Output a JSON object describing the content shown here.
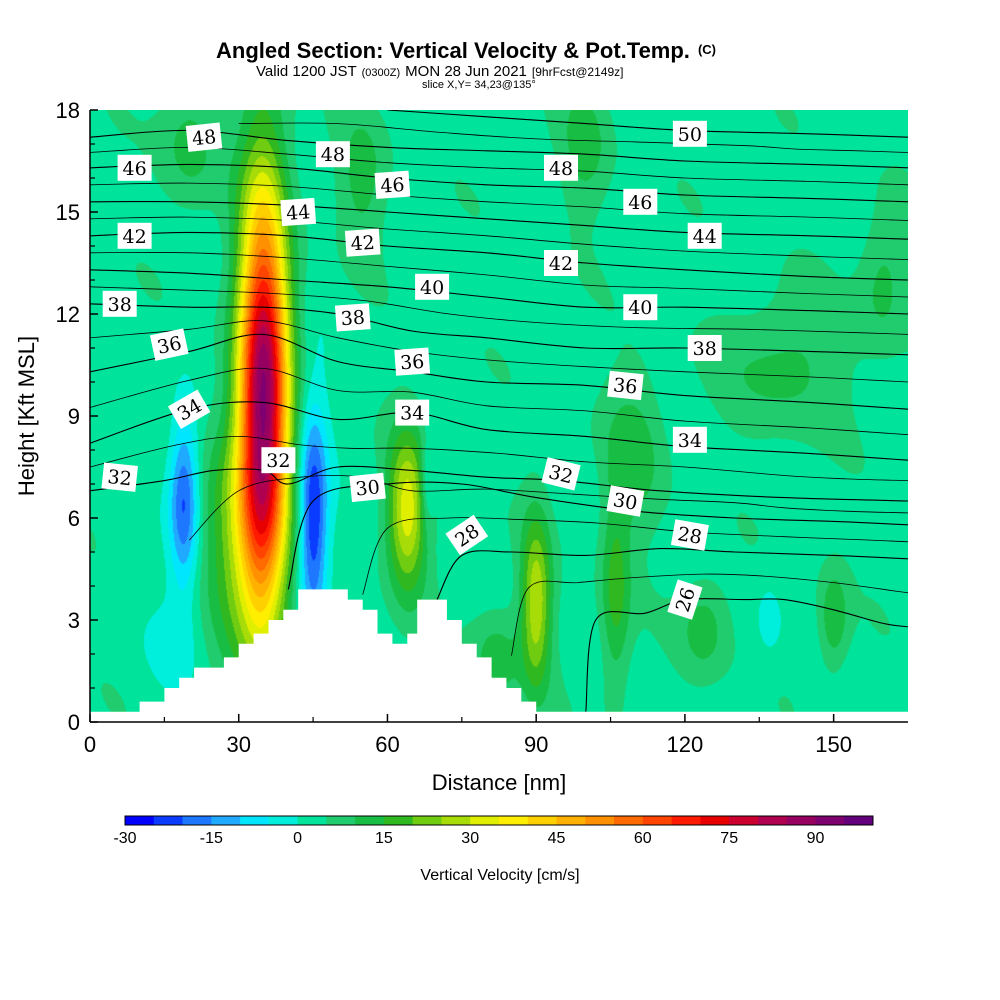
{
  "chart_data": {
    "type": "heatmap",
    "title": "Angled Section: Vertical Velocity & Pot.Temp.",
    "title_tag": "(C)",
    "subtitle_parts": [
      "Valid 1200 JST",
      "(0300Z)",
      "MON 28 Jun 2021",
      "[9hrFcst@2149z]"
    ],
    "slice_label": "slice X,Y= 34,23@135°",
    "xlabel": "Distance [nm]",
    "ylabel": "Height [Kft MSL]",
    "xlim": [
      0,
      165
    ],
    "ylim": [
      0,
      18
    ],
    "xticks": [
      "0",
      "30",
      "60",
      "90",
      "120",
      "150"
    ],
    "yticks": [
      "0",
      "3",
      "6",
      "9",
      "12",
      "15",
      "18"
    ],
    "colorbar": {
      "title": "Vertical Velocity [cm/s]",
      "tick_labels": [
        "-30",
        "-15",
        "0",
        "15",
        "30",
        "45",
        "60",
        "75",
        "90"
      ],
      "tick_values": [
        -30,
        -15,
        0,
        15,
        30,
        45,
        60,
        75,
        90
      ],
      "min": -30,
      "max": 100,
      "step": 5,
      "colors": [
        "#0000ff",
        "#0a3cff",
        "#1e78ff",
        "#20aaff",
        "#00e6ff",
        "#00eedc",
        "#00e39a",
        "#20cc6e",
        "#18be44",
        "#30b820",
        "#70cc10",
        "#a8dc08",
        "#e0ee00",
        "#ffee00",
        "#ffd000",
        "#ffb000",
        "#ff9000",
        "#ff6a00",
        "#ff4400",
        "#ff1a00",
        "#e80000",
        "#cc0030",
        "#b00050",
        "#960060",
        "#7e0070",
        "#64007c"
      ]
    },
    "background_value": 3,
    "velocity_features": [
      {
        "x": 35,
        "y": 9.5,
        "rx": 5,
        "ry": 6.2,
        "peak": 85
      },
      {
        "x": 30,
        "y": 5.5,
        "rx": 7,
        "ry": 3.5,
        "peak": 18
      },
      {
        "x": 19,
        "y": 6.5,
        "rx": 3,
        "ry": 2.5,
        "peak": -25
      },
      {
        "x": 45,
        "y": 6,
        "rx": 3,
        "ry": 3.2,
        "peak": -30
      },
      {
        "x": 64,
        "y": 6.2,
        "rx": 4,
        "ry": 2.3,
        "peak": 30
      },
      {
        "x": 68,
        "y": 7,
        "rx": 1.5,
        "ry": 1.3,
        "peak": -12
      },
      {
        "x": 82,
        "y": 1.8,
        "rx": 5,
        "ry": 1.5,
        "peak": 10
      },
      {
        "x": 90,
        "y": 3.5,
        "rx": 3,
        "ry": 2.5,
        "peak": 26
      },
      {
        "x": 106,
        "y": 3.8,
        "rx": 3,
        "ry": 3,
        "peak": 14
      },
      {
        "x": 124,
        "y": 2.8,
        "rx": 5,
        "ry": 1.5,
        "peak": 10
      },
      {
        "x": 150,
        "y": 3,
        "rx": 3,
        "ry": 1.5,
        "peak": 12
      },
      {
        "x": 137,
        "y": 3,
        "rx": 3,
        "ry": 1.4,
        "peak": -5
      },
      {
        "x": 18,
        "y": 2.5,
        "rx": 6,
        "ry": 1.5,
        "peak": -5
      },
      {
        "x": 20,
        "y": 17,
        "rx": 6,
        "ry": 2,
        "peak": 9
      },
      {
        "x": 55,
        "y": 16,
        "rx": 5,
        "ry": 2,
        "peak": 9
      },
      {
        "x": 100,
        "y": 17,
        "rx": 5,
        "ry": 2,
        "peak": 9
      },
      {
        "x": 140,
        "y": 10.5,
        "rx": 12,
        "ry": 2,
        "peak": 9
      },
      {
        "x": 160,
        "y": 13,
        "rx": 5,
        "ry": 2,
        "peak": 9
      },
      {
        "x": 110,
        "y": 8,
        "rx": 6,
        "ry": 2.5,
        "peak": 9
      }
    ],
    "terrain": [
      [
        0,
        0.3
      ],
      [
        10,
        0.3
      ],
      [
        10,
        0.6
      ],
      [
        15,
        0.6
      ],
      [
        15,
        1.0
      ],
      [
        18,
        1.0
      ],
      [
        18,
        1.3
      ],
      [
        21,
        1.3
      ],
      [
        21,
        1.6
      ],
      [
        27,
        1.6
      ],
      [
        27,
        1.9
      ],
      [
        30,
        1.9
      ],
      [
        30,
        2.3
      ],
      [
        33,
        2.3
      ],
      [
        33,
        2.6
      ],
      [
        36,
        2.6
      ],
      [
        36,
        3.0
      ],
      [
        39,
        3.0
      ],
      [
        39,
        3.3
      ],
      [
        42,
        3.3
      ],
      [
        42,
        3.9
      ],
      [
        52,
        3.9
      ],
      [
        52,
        3.6
      ],
      [
        55,
        3.6
      ],
      [
        55,
        3.3
      ],
      [
        58,
        3.3
      ],
      [
        58,
        2.6
      ],
      [
        61,
        2.6
      ],
      [
        61,
        2.3
      ],
      [
        64,
        2.3
      ],
      [
        64,
        2.6
      ],
      [
        66,
        2.6
      ],
      [
        66,
        3.6
      ],
      [
        72,
        3.6
      ],
      [
        72,
        3.0
      ],
      [
        75,
        3.0
      ],
      [
        75,
        2.3
      ],
      [
        78,
        2.3
      ],
      [
        78,
        1.9
      ],
      [
        81,
        1.9
      ],
      [
        81,
        1.3
      ],
      [
        84,
        1.3
      ],
      [
        84,
        1.0
      ],
      [
        87,
        1.0
      ],
      [
        87,
        0.6
      ],
      [
        90,
        0.6
      ],
      [
        90,
        0.3
      ],
      [
        165,
        0.3
      ]
    ],
    "isentropes": [
      {
        "value": 26,
        "points": [
          [
            100,
            0.3
          ],
          [
            102,
            3.0
          ],
          [
            112,
            3.2
          ],
          [
            120,
            3.6
          ],
          [
            132,
            3.6
          ],
          [
            140,
            3.6
          ],
          [
            150,
            3.3
          ],
          [
            160,
            2.9
          ],
          [
            165,
            2.8
          ]
        ]
      },
      {
        "value": 28,
        "points": [
          [
            70,
            3.6
          ],
          [
            75,
            4.9
          ],
          [
            85,
            5.0
          ],
          [
            100,
            4.9
          ],
          [
            115,
            5.1
          ],
          [
            130,
            5.0
          ],
          [
            150,
            4.9
          ],
          [
            165,
            4.8
          ]
        ]
      },
      {
        "value": 30,
        "points": [
          [
            40,
            3.9
          ],
          [
            45,
            6.5
          ],
          [
            60,
            7.0
          ],
          [
            75,
            7.0
          ],
          [
            90,
            6.6
          ],
          [
            110,
            6.2
          ],
          [
            130,
            6.0
          ],
          [
            150,
            5.9
          ],
          [
            165,
            5.8
          ]
        ]
      },
      {
        "value": 32,
        "points": [
          [
            0,
            6.8
          ],
          [
            15,
            7.1
          ],
          [
            25,
            7.4
          ],
          [
            35,
            7.4
          ],
          [
            40,
            7.0
          ],
          [
            50,
            7.5
          ],
          [
            65,
            7.4
          ],
          [
            80,
            7.2
          ],
          [
            95,
            7.1
          ],
          [
            115,
            6.8
          ],
          [
            140,
            6.6
          ],
          [
            165,
            6.5
          ]
        ]
      },
      {
        "value": 34,
        "points": [
          [
            0,
            8.2
          ],
          [
            20,
            9.2
          ],
          [
            35,
            9.4
          ],
          [
            50,
            8.9
          ],
          [
            65,
            9.1
          ],
          [
            80,
            8.6
          ],
          [
            100,
            8.4
          ],
          [
            120,
            8.1
          ],
          [
            145,
            7.9
          ],
          [
            165,
            7.7
          ]
        ]
      },
      {
        "value": 36,
        "points": [
          [
            0,
            10.3
          ],
          [
            20,
            10.9
          ],
          [
            35,
            11.4
          ],
          [
            50,
            10.6
          ],
          [
            65,
            10.3
          ],
          [
            80,
            10.0
          ],
          [
            100,
            9.9
          ],
          [
            120,
            9.6
          ],
          [
            145,
            9.4
          ],
          [
            165,
            9.2
          ]
        ]
      },
      {
        "value": 38,
        "points": [
          [
            0,
            12.3
          ],
          [
            20,
            12.2
          ],
          [
            35,
            12.2
          ],
          [
            50,
            12.0
          ],
          [
            65,
            11.5
          ],
          [
            80,
            11.3
          ],
          [
            100,
            11.0
          ],
          [
            120,
            11.0
          ],
          [
            145,
            10.9
          ],
          [
            165,
            10.8
          ]
        ]
      },
      {
        "value": 40,
        "points": [
          [
            0,
            13.3
          ],
          [
            20,
            13.2
          ],
          [
            40,
            13.0
          ],
          [
            60,
            12.8
          ],
          [
            80,
            12.5
          ],
          [
            100,
            12.2
          ],
          [
            120,
            12.2
          ],
          [
            145,
            12.1
          ],
          [
            165,
            12.0
          ]
        ]
      },
      {
        "value": 42,
        "points": [
          [
            0,
            14.3
          ],
          [
            20,
            14.4
          ],
          [
            40,
            14.3
          ],
          [
            60,
            14.0
          ],
          [
            80,
            13.8
          ],
          [
            100,
            13.5
          ],
          [
            120,
            13.3
          ],
          [
            145,
            13.1
          ],
          [
            165,
            13.0
          ]
        ]
      },
      {
        "value": 44,
        "points": [
          [
            0,
            15.3
          ],
          [
            20,
            15.3
          ],
          [
            40,
            15.2
          ],
          [
            60,
            15.0
          ],
          [
            80,
            14.8
          ],
          [
            100,
            14.6
          ],
          [
            120,
            14.4
          ],
          [
            145,
            14.3
          ],
          [
            165,
            14.2
          ]
        ]
      },
      {
        "value": 46,
        "points": [
          [
            0,
            16.3
          ],
          [
            20,
            16.4
          ],
          [
            40,
            16.3
          ],
          [
            60,
            16.0
          ],
          [
            80,
            15.8
          ],
          [
            100,
            15.7
          ],
          [
            120,
            15.5
          ],
          [
            145,
            15.4
          ],
          [
            165,
            15.3
          ]
        ]
      },
      {
        "value": 48,
        "points": [
          [
            0,
            17.2
          ],
          [
            20,
            17.4
          ],
          [
            40,
            17.1
          ],
          [
            60,
            16.9
          ],
          [
            80,
            16.8
          ],
          [
            100,
            16.7
          ],
          [
            120,
            16.5
          ],
          [
            145,
            16.4
          ],
          [
            165,
            16.3
          ]
        ]
      },
      {
        "value": 50,
        "points": [
          [
            60,
            18.0
          ],
          [
            80,
            17.8
          ],
          [
            100,
            17.6
          ],
          [
            120,
            17.4
          ],
          [
            145,
            17.3
          ],
          [
            165,
            17.2
          ]
        ]
      }
    ],
    "contour_labels": [
      {
        "text": "48",
        "x": 23,
        "y": 17.2,
        "angle": -6
      },
      {
        "text": "46",
        "x": 9,
        "y": 16.3,
        "angle": 0
      },
      {
        "text": "48",
        "x": 49,
        "y": 16.7,
        "angle": 0
      },
      {
        "text": "50",
        "x": 121,
        "y": 17.3,
        "angle": 0
      },
      {
        "text": "48",
        "x": 95,
        "y": 16.3,
        "angle": 0
      },
      {
        "text": "46",
        "x": 61,
        "y": 15.8,
        "angle": -4
      },
      {
        "text": "46",
        "x": 111,
        "y": 15.3,
        "angle": 0
      },
      {
        "text": "44",
        "x": 42,
        "y": 15.0,
        "angle": -4
      },
      {
        "text": "42",
        "x": 9,
        "y": 14.3,
        "angle": 0
      },
      {
        "text": "42",
        "x": 55,
        "y": 14.1,
        "angle": -4
      },
      {
        "text": "44",
        "x": 124,
        "y": 14.3,
        "angle": 0
      },
      {
        "text": "42",
        "x": 95,
        "y": 13.5,
        "angle": 0
      },
      {
        "text": "40",
        "x": 69,
        "y": 12.8,
        "angle": 0
      },
      {
        "text": "40",
        "x": 111,
        "y": 12.2,
        "angle": 0
      },
      {
        "text": "38",
        "x": 6,
        "y": 12.3,
        "angle": 0
      },
      {
        "text": "38",
        "x": 53,
        "y": 11.9,
        "angle": -4
      },
      {
        "text": "36",
        "x": 16,
        "y": 11.1,
        "angle": -12
      },
      {
        "text": "38",
        "x": 124,
        "y": 11.0,
        "angle": 0
      },
      {
        "text": "36",
        "x": 65,
        "y": 10.6,
        "angle": -4
      },
      {
        "text": "36",
        "x": 108,
        "y": 9.9,
        "angle": 6
      },
      {
        "text": "34",
        "x": 20,
        "y": 9.2,
        "angle": -30
      },
      {
        "text": "34",
        "x": 65,
        "y": 9.1,
        "angle": 0
      },
      {
        "text": "34",
        "x": 121,
        "y": 8.3,
        "angle": 0
      },
      {
        "text": "32",
        "x": 38,
        "y": 7.7,
        "angle": 0
      },
      {
        "text": "32",
        "x": 6,
        "y": 7.2,
        "angle": 6
      },
      {
        "text": "32",
        "x": 95,
        "y": 7.3,
        "angle": 14
      },
      {
        "text": "30",
        "x": 56,
        "y": 6.9,
        "angle": -6
      },
      {
        "text": "30",
        "x": 108,
        "y": 6.5,
        "angle": 10
      },
      {
        "text": "28",
        "x": 76,
        "y": 5.5,
        "angle": -34
      },
      {
        "text": "28",
        "x": 121,
        "y": 5.5,
        "angle": 10
      },
      {
        "text": "26",
        "x": 120,
        "y": 3.6,
        "angle": -72
      }
    ]
  }
}
